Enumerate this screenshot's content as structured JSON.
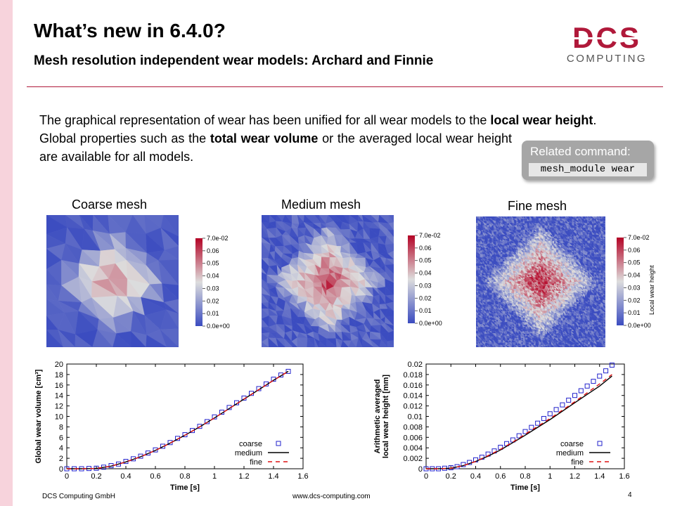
{
  "slide": {
    "title": "What’s new in 6.4.0?",
    "subtitle": "Mesh resolution independent wear models: Archard and Finnie",
    "intro_p1_a": "The graphical representation of wear has been unified for all wear models to the ",
    "intro_p1_b": "local wear height",
    "intro_p1_c": ".",
    "intro_p2_a": "Global properties such as the ",
    "intro_p2_b": "total wear volume",
    "intro_p2_c": " or the averaged local wear height are available for all models.",
    "page_number": "4"
  },
  "logo": {
    "wordmark": "DCS",
    "tagline": "COMPUTING",
    "color": "#b0193a",
    "tagline_color": "#555555"
  },
  "command_box": {
    "title": "Related command:",
    "code": "mesh_module wear"
  },
  "meshes": [
    {
      "label": "Coarse mesh",
      "resolution": 8,
      "peak": 0.055
    },
    {
      "label": "Medium mesh",
      "resolution": 18,
      "peak": 0.068
    },
    {
      "label": "Fine mesh",
      "resolution": 58,
      "peak": 0.07
    }
  ],
  "colorbar": {
    "ticks": [
      "7.0e-02",
      "0.06",
      "0.05",
      "0.04",
      "0.03",
      "0.02",
      "0.01",
      "0.0e+00"
    ],
    "title": "Local wear height",
    "low_color": "#3b4cc0",
    "mid_color": "#dddddd",
    "high_color": "#b40426"
  },
  "footer": {
    "company": "DCS Computing GmbH",
    "url": "www.dcs-computing.com"
  },
  "chart_data": [
    {
      "type": "line",
      "xlabel": "Time [s]",
      "ylabel": "Global wear volume [cm³]",
      "xlim": [
        0,
        1.6
      ],
      "ylim": [
        0,
        20
      ],
      "xticks": [
        "0",
        "0.2",
        "0.4",
        "0.6",
        "0.8",
        "1",
        "1.2",
        "1.4",
        "1.6"
      ],
      "yticks": [
        "0",
        "2",
        "4",
        "6",
        "8",
        "10",
        "12",
        "14",
        "16",
        "18",
        "20"
      ],
      "legend_position": "bottom-right",
      "series": [
        {
          "name": "coarse",
          "style": "squares",
          "color": "#2222cc",
          "x": [
            0,
            0.05,
            0.1,
            0.15,
            0.2,
            0.25,
            0.3,
            0.35,
            0.4,
            0.45,
            0.5,
            0.55,
            0.6,
            0.65,
            0.7,
            0.75,
            0.8,
            0.85,
            0.9,
            0.95,
            1.0,
            1.05,
            1.1,
            1.15,
            1.2,
            1.25,
            1.3,
            1.35,
            1.4,
            1.45,
            1.5
          ],
          "y": [
            0,
            0,
            0,
            0.05,
            0.1,
            0.3,
            0.6,
            0.9,
            1.4,
            1.9,
            2.4,
            3.0,
            3.6,
            4.3,
            5.0,
            5.8,
            6.5,
            7.3,
            8.1,
            9.0,
            9.9,
            10.8,
            11.7,
            12.6,
            13.5,
            14.4,
            15.3,
            16.2,
            17.1,
            17.9,
            18.6
          ]
        },
        {
          "name": "medium",
          "style": "solid",
          "color": "#000000",
          "x": [
            0,
            0.1,
            0.2,
            0.3,
            0.4,
            0.5,
            0.6,
            0.7,
            0.8,
            0.9,
            1.0,
            1.1,
            1.2,
            1.3,
            1.4,
            1.5
          ],
          "y": [
            0,
            0,
            0.05,
            0.5,
            1.3,
            2.3,
            3.5,
            4.9,
            6.4,
            8.0,
            9.7,
            11.5,
            13.3,
            15.1,
            16.9,
            18.6
          ]
        },
        {
          "name": "fine",
          "style": "dashed",
          "color": "#dd1111",
          "x": [
            0,
            0.1,
            0.2,
            0.3,
            0.4,
            0.5,
            0.6,
            0.7,
            0.8,
            0.9,
            1.0,
            1.1,
            1.2,
            1.3,
            1.4,
            1.5
          ],
          "y": [
            0,
            0,
            0.05,
            0.5,
            1.3,
            2.3,
            3.5,
            4.9,
            6.4,
            8.0,
            9.7,
            11.5,
            13.3,
            15.1,
            16.9,
            18.6
          ]
        }
      ]
    },
    {
      "type": "line",
      "xlabel": "Time [s]",
      "ylabel": "Arithmetic averaged local wear height [mm]",
      "ylabel_line1": "Arithmetic averaged",
      "ylabel_line2": "local wear height [mm]",
      "xlim": [
        0,
        1.6
      ],
      "ylim": [
        0,
        0.02
      ],
      "xticks": [
        "0",
        "0.2",
        "0.4",
        "0.6",
        "0.8",
        "1",
        "1.2",
        "1.4",
        "1.6"
      ],
      "yticks": [
        "0",
        "0.002",
        "0.004",
        "0.006",
        "0.008",
        "0.01",
        "0.012",
        "0.014",
        "0.016",
        "0.018",
        "0.02"
      ],
      "legend_position": "bottom-right",
      "series": [
        {
          "name": "coarse",
          "style": "squares",
          "color": "#2222cc",
          "x": [
            0,
            0.05,
            0.1,
            0.15,
            0.2,
            0.25,
            0.3,
            0.35,
            0.4,
            0.45,
            0.5,
            0.55,
            0.6,
            0.65,
            0.7,
            0.75,
            0.8,
            0.85,
            0.9,
            0.95,
            1.0,
            1.05,
            1.1,
            1.15,
            1.2,
            1.25,
            1.3,
            1.35,
            1.4,
            1.45,
            1.5
          ],
          "y": [
            0,
            0,
            0,
            0.0001,
            0.0002,
            0.0004,
            0.0008,
            0.0012,
            0.0017,
            0.0022,
            0.0028,
            0.0034,
            0.0041,
            0.0048,
            0.0055,
            0.0063,
            0.0071,
            0.0079,
            0.0087,
            0.0096,
            0.0105,
            0.0113,
            0.0122,
            0.0131,
            0.014,
            0.0149,
            0.0158,
            0.0167,
            0.0177,
            0.0187,
            0.0198
          ]
        },
        {
          "name": "medium",
          "style": "solid",
          "color": "#000000",
          "x": [
            0,
            0.1,
            0.2,
            0.3,
            0.4,
            0.5,
            0.6,
            0.7,
            0.8,
            0.9,
            1.0,
            1.1,
            1.2,
            1.3,
            1.4,
            1.5
          ],
          "y": [
            0,
            0,
            0.0001,
            0.0006,
            0.0014,
            0.0024,
            0.0036,
            0.005,
            0.0064,
            0.0079,
            0.0094,
            0.011,
            0.0126,
            0.0142,
            0.0158,
            0.0177
          ]
        },
        {
          "name": "fine",
          "style": "dashed",
          "color": "#dd1111",
          "x": [
            0,
            0.1,
            0.2,
            0.3,
            0.4,
            0.5,
            0.6,
            0.7,
            0.8,
            0.9,
            1.0,
            1.1,
            1.2,
            1.3,
            1.4,
            1.5
          ],
          "y": [
            0,
            0,
            0.0001,
            0.0006,
            0.0014,
            0.0025,
            0.0037,
            0.0051,
            0.0066,
            0.0081,
            0.0096,
            0.0112,
            0.0128,
            0.0145,
            0.0162,
            0.018
          ]
        }
      ]
    }
  ]
}
